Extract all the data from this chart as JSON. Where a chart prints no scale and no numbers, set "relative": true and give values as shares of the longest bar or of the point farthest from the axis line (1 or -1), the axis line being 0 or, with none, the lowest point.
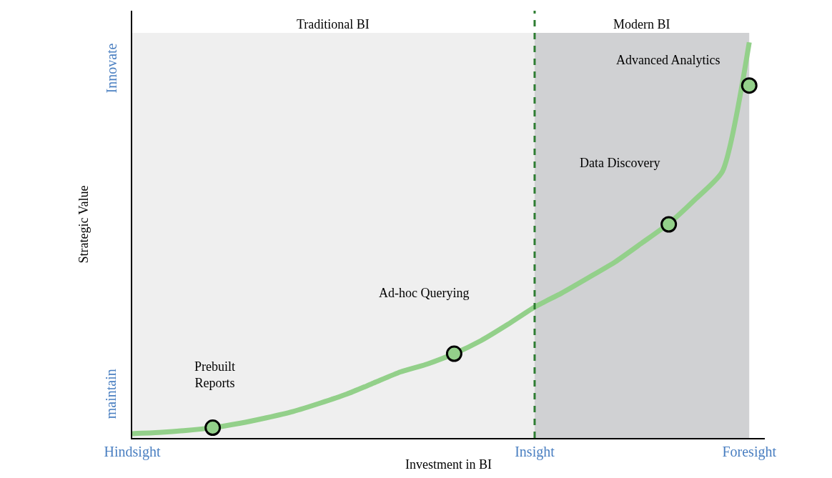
{
  "chart_data": {
    "type": "line",
    "relative": true,
    "xlabel": "Investment in BI",
    "ylabel": "Strategic Value",
    "categories": [
      "Hindsight",
      null,
      null,
      null,
      null,
      null,
      null,
      null,
      null,
      null,
      null,
      null,
      null,
      null,
      null,
      "Insight",
      null,
      null,
      null,
      null,
      null,
      null,
      null,
      "Foresight"
    ],
    "series": [
      {
        "color": "#93d08a",
        "values": [
          0.011,
          0.014,
          0.019,
          0.026,
          0.037,
          0.051,
          0.067,
          0.088,
          0.111,
          0.139,
          0.167,
          0.187,
          0.213,
          0.246,
          0.287,
          0.331,
          0.366,
          0.405,
          0.445,
          0.493,
          0.542,
          0.604,
          0.674,
          1.0
        ]
      },
      {
        "type": "scatter",
        "color": "#93d08a",
        "marker": "circle",
        "values": [
          null,
          null,
          null,
          0.026,
          null,
          null,
          null,
          null,
          null,
          null,
          null,
          null,
          0.213,
          null,
          null,
          null,
          null,
          null,
          null,
          null,
          0.54,
          null,
          null,
          0.891
        ]
      }
    ],
    "bands": [
      {
        "axis": "x",
        "from": "Hindsight",
        "to": "Insight",
        "label": "Traditional BI",
        "color": "#efefef"
      },
      {
        "axis": "x",
        "from": "Insight",
        "to": "Foresight",
        "label": "Modern BI",
        "color": "#d0d1d3"
      }
    ],
    "ref_lines": [
      {
        "axis": "x",
        "value": "Insight",
        "color": "#2e7d32",
        "line_style": "dashed"
      }
    ],
    "annotations": [
      "Prebuilt\nReports",
      "Ad-hoc Querying",
      "Data Discovery",
      "Advanced Analytics",
      "maintain",
      "Innovate"
    ]
  }
}
